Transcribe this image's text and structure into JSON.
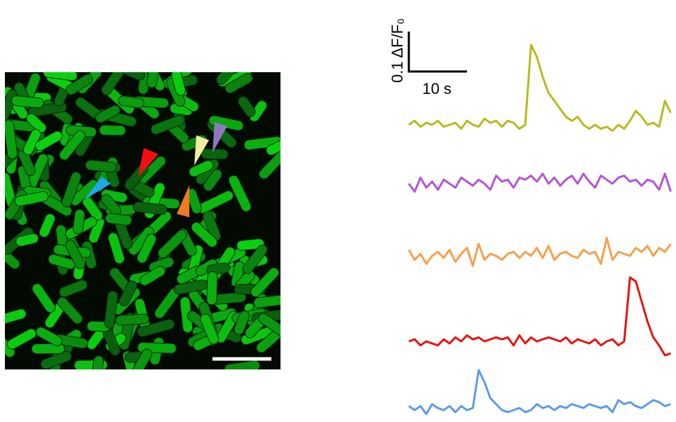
{
  "chart_data": {
    "type": "traces",
    "scale_bar": {
      "y": {
        "value": 0.1,
        "label": "0.1 ΔF/F₀"
      },
      "x": {
        "value": 10,
        "label": "10 s"
      }
    },
    "x": [
      0,
      1,
      2,
      3,
      4,
      5,
      6,
      7,
      8,
      9,
      10,
      11,
      12,
      13,
      14,
      15,
      16,
      17,
      18,
      19,
      20,
      21,
      22,
      23,
      24,
      25,
      26,
      27,
      28,
      29,
      30,
      31,
      32,
      33,
      34,
      35,
      36,
      37,
      38,
      39,
      40,
      41,
      42,
      43,
      44,
      45
    ],
    "series": [
      {
        "color": "#b9b81d",
        "values": [
          0,
          0.01,
          -0.005,
          0.005,
          0,
          0.01,
          -0.005,
          0,
          0.005,
          -0.01,
          0.01,
          0,
          -0.005,
          0.015,
          0.005,
          0.01,
          -0.005,
          0.01,
          0.005,
          -0.01,
          0,
          0.2,
          0.17,
          0.12,
          0.08,
          0.06,
          0.04,
          0.02,
          0.01,
          0.02,
          0,
          -0.01,
          0,
          -0.01,
          -0.005,
          -0.015,
          0,
          -0.01,
          0.01,
          0.035,
          0.02,
          0,
          0.005,
          -0.005,
          0.06,
          0.03
        ]
      },
      {
        "color": "#b454d6",
        "values": [
          0,
          -0.02,
          0.015,
          -0.01,
          0.005,
          -0.015,
          0.01,
          0,
          -0.01,
          0.015,
          0.005,
          -0.005,
          0.01,
          0,
          -0.015,
          0.02,
          0.005,
          0.01,
          -0.01,
          0.015,
          0.01,
          0.02,
          0.005,
          0.025,
          0,
          0.015,
          -0.005,
          0.01,
          0.02,
          0,
          0.025,
          0.005,
          -0.01,
          0.02,
          0.01,
          0,
          0.015,
          0.02,
          0.005,
          0.01,
          -0.005,
          0.01,
          0.005,
          -0.015,
          0.025,
          -0.02
        ]
      },
      {
        "color": "#f5a04a",
        "values": [
          0.015,
          -0.01,
          0.005,
          -0.02,
          0,
          0.01,
          -0.005,
          0.015,
          -0.015,
          0.005,
          0.02,
          -0.025,
          0.03,
          -0.01,
          0.005,
          0,
          -0.01,
          0.005,
          0.01,
          -0.005,
          0.01,
          0,
          0.02,
          -0.005,
          0.025,
          -0.01,
          0.005,
          0.01,
          0,
          -0.005,
          0.015,
          0.005,
          0.01,
          -0.02,
          0.045,
          -0.01,
          0.01,
          0.005,
          0,
          0.02,
          0.01,
          0.025,
          0,
          0.02,
          0.01,
          0.03
        ]
      },
      {
        "color": "#e8120f",
        "values": [
          0,
          0.005,
          -0.01,
          0,
          -0.005,
          -0.01,
          0.005,
          -0.005,
          0.01,
          0,
          0.015,
          0.005,
          0.01,
          0,
          0.005,
          0.01,
          0.005,
          0.01,
          -0.01,
          0.015,
          -0.005,
          0.01,
          0,
          0.005,
          0.01,
          0.005,
          0,
          0.01,
          -0.005,
          0.005,
          0,
          -0.005,
          0.005,
          -0.01,
          0,
          0.005,
          -0.01,
          0,
          0.16,
          0.15,
          0.1,
          0.05,
          0.01,
          -0.01,
          -0.035,
          -0.03
        ]
      },
      {
        "color": "#5b9be8",
        "values": [
          0.01,
          0,
          0.01,
          -0.01,
          0.015,
          0.005,
          0,
          0.01,
          -0.005,
          0.01,
          0,
          0.005,
          0.1,
          0.07,
          0.03,
          0.015,
          0,
          -0.005,
          0,
          0.005,
          -0.005,
          0,
          0.015,
          0.005,
          0.01,
          0,
          0.01,
          0.005,
          0.015,
          0.01,
          0.005,
          0.015,
          0.01,
          0.005,
          0.01,
          -0.005,
          0.025,
          0.015,
          0.02,
          0.01,
          0.005,
          0.015,
          0.025,
          0.02,
          0.01,
          0.015
        ]
      }
    ]
  }
}
